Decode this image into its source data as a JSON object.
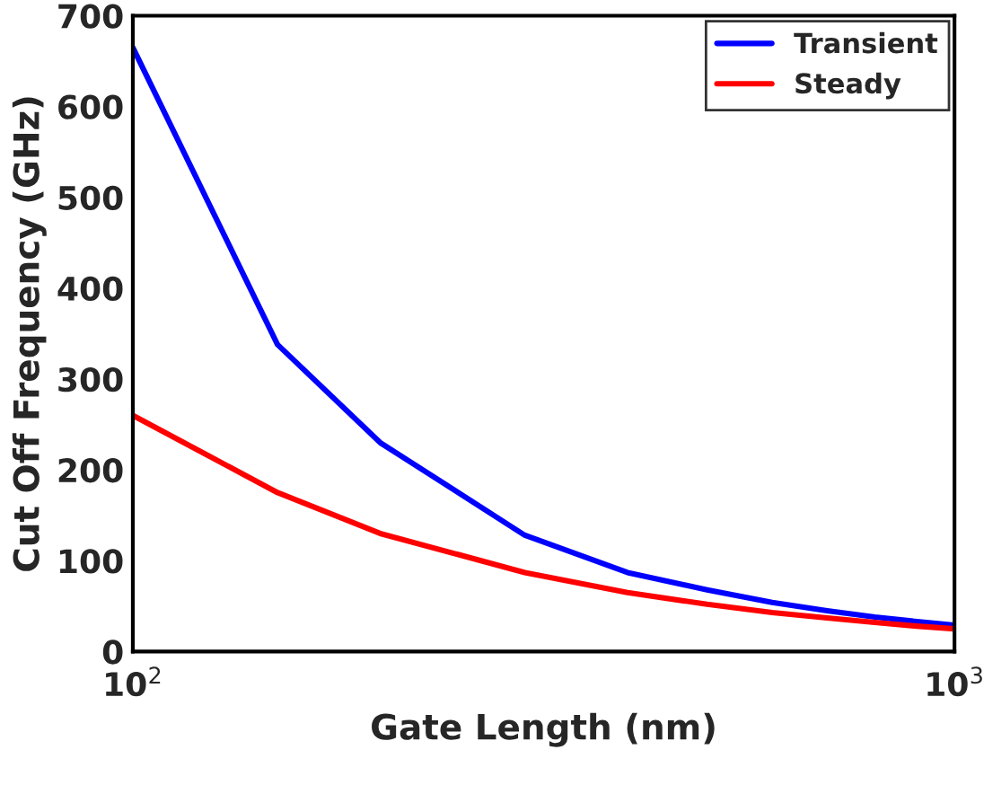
{
  "chart_data": {
    "type": "line",
    "xlabel": "Gate Length (nm)",
    "ylabel": "Cut Off Frequency (GHz)",
    "x": [
      100,
      150,
      200,
      300,
      400,
      500,
      600,
      700,
      800,
      900,
      1000
    ],
    "series": [
      {
        "name": "Transient",
        "color": "#0000ff",
        "values": [
          665,
          338,
          230,
          128,
          87,
          68,
          54,
          45,
          38,
          33,
          29
        ]
      },
      {
        "name": "Steady",
        "color": "#ff0000",
        "values": [
          260,
          175,
          130,
          87,
          65,
          52,
          43,
          37,
          32,
          28,
          25
        ]
      }
    ],
    "log": "x",
    "xlim": [
      100,
      1000
    ],
    "xticks": [
      {
        "value": 100,
        "label": "10$^{2}$"
      },
      {
        "value": 1000,
        "label": "10$^{3}$"
      }
    ],
    "ylim": [
      0,
      700
    ],
    "yticks": [
      0,
      100,
      200,
      300,
      400,
      500,
      600,
      700
    ],
    "grid": false,
    "legend": "top right",
    "marker": "none",
    "line_style": "solid"
  }
}
